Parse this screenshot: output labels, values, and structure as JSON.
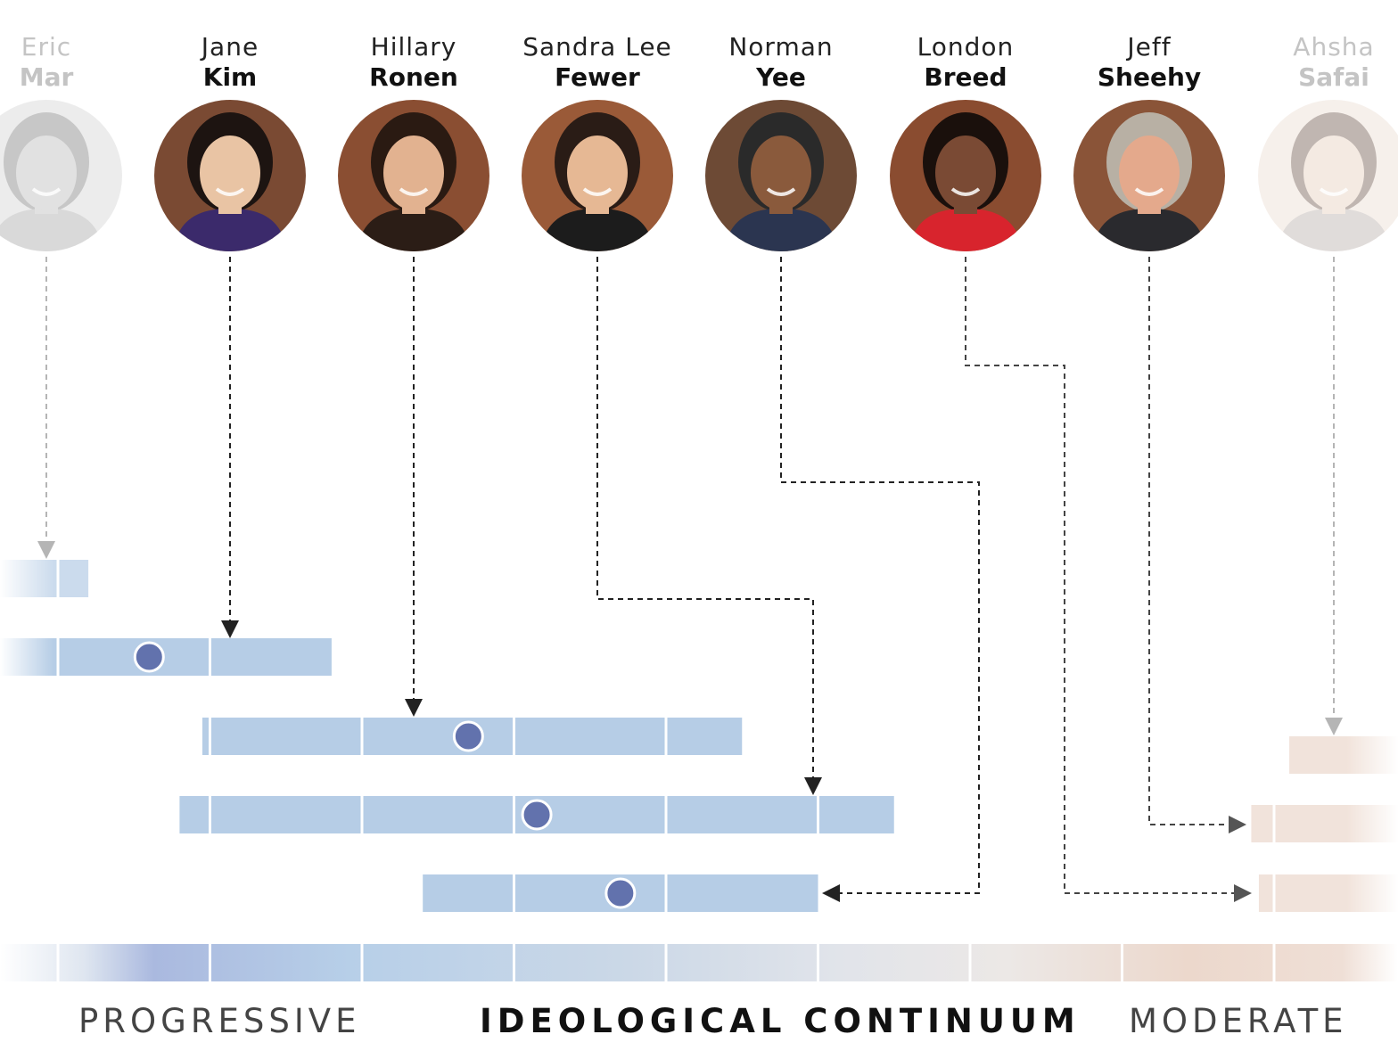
{
  "title": "IDEOLOGICAL CONTINUUM",
  "left_label": "PROGRESSIVE",
  "right_label": "MODERATE",
  "colors": {
    "progressive": "#b6cde6",
    "moderate": "#ecd8cc",
    "dot": "#6272ad",
    "arrow": "#222222",
    "faded": "#bbbbbb"
  },
  "supervisors": [
    {
      "first": "Eric",
      "last": "Mar",
      "faded": true,
      "skin": "#c9c9c9",
      "hair": "#9a9a9a",
      "bg": "#dddddd",
      "suit": "#bbbbbb"
    },
    {
      "first": "Jane",
      "last": "Kim",
      "faded": false,
      "skin": "#e9c4a4",
      "hair": "#1d1411",
      "bg": "#7a4a33",
      "suit": "#3b2a6b"
    },
    {
      "first": "Hillary",
      "last": "Ronen",
      "faded": false,
      "skin": "#e2b290",
      "hair": "#2a1a12",
      "bg": "#8a4e32",
      "suit": "#2b1d16"
    },
    {
      "first": "Sandra Lee",
      "last": "Fewer",
      "faded": false,
      "skin": "#e6b894",
      "hair": "#2a1c16",
      "bg": "#9a5a38",
      "suit": "#1c1c1c"
    },
    {
      "first": "Norman",
      "last": "Yee",
      "faded": false,
      "skin": "#8a5a3c",
      "hair": "#2a2a2a",
      "bg": "#6d4a35",
      "suit": "#2b3550"
    },
    {
      "first": "London",
      "last": "Breed",
      "faded": false,
      "skin": "#7a4a34",
      "hair": "#1a100c",
      "bg": "#8a4c30",
      "suit": "#d8242d"
    },
    {
      "first": "Jeff",
      "last": "Sheehy",
      "faded": false,
      "skin": "#e4a98c",
      "hair": "#b8b0a4",
      "bg": "#8a5438",
      "suit": "#2a2a2e"
    },
    {
      "first": "Ahsha",
      "last": "Safai",
      "faded": true,
      "skin": "#ecd9cc",
      "hair": "#8e7c72",
      "bg": "#f0e4dc",
      "suit": "#c8c0bc"
    }
  ],
  "continuum_segments": 9,
  "ranges": [
    {
      "supervisor": "Eric Mar",
      "start": -0.5,
      "end": 0.2,
      "dot": null,
      "faded": true,
      "side": "progressive"
    },
    {
      "supervisor": "Jane Kim",
      "start": -0.5,
      "end": 1.8,
      "dot": 0.6,
      "faded": false,
      "side": "progressive"
    },
    {
      "supervisor": "Hillary Ronen",
      "start": 0.95,
      "end": 4.5,
      "dot": 2.7,
      "faded": false,
      "side": "progressive"
    },
    {
      "supervisor": "Sandra Lee Fewer",
      "start": 0.8,
      "end": 5.5,
      "dot": 3.15,
      "faded": false,
      "side": "progressive"
    },
    {
      "supervisor": "Norman Yee",
      "start": 2.4,
      "end": 5.0,
      "dot": 3.7,
      "faded": false,
      "side": "progressive"
    },
    {
      "supervisor": "Ahsha Safai",
      "start": 8.1,
      "end": 9.5,
      "dot": null,
      "faded": true,
      "side": "moderate"
    },
    {
      "supervisor": "Jeff Sheehy",
      "start": 7.85,
      "end": 9.5,
      "dot": null,
      "faded": true,
      "side": "moderate"
    },
    {
      "supervisor": "London Breed",
      "start": 7.9,
      "end": 9.5,
      "dot": null,
      "faded": true,
      "side": "moderate"
    }
  ]
}
